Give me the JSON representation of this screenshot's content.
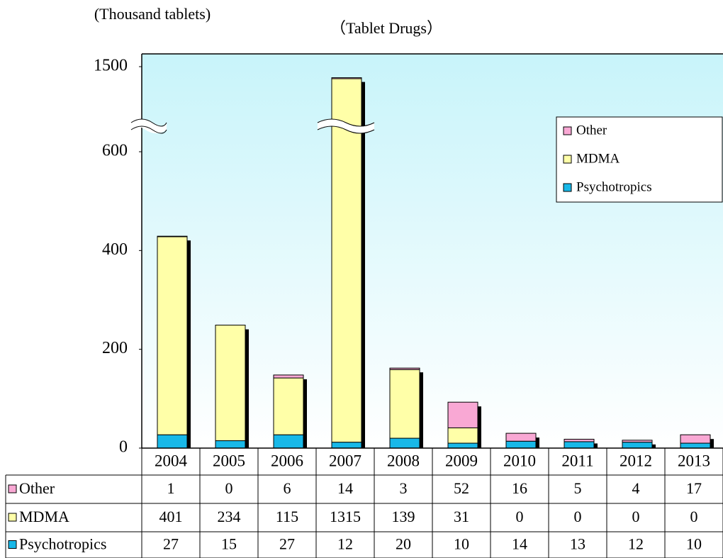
{
  "chart_data": {
    "type": "bar",
    "stacked": true,
    "axis_break": true,
    "title": "（Tablet Drugs）",
    "y_label": "(Thousand tablets)",
    "categories": [
      "2004",
      "2005",
      "2006",
      "2007",
      "2008",
      "2009",
      "2010",
      "2011",
      "2012",
      "2013"
    ],
    "series": [
      {
        "name": "Other",
        "color": "#f9a8d4",
        "values": [
          1,
          0,
          6,
          14,
          3,
          52,
          16,
          5,
          4,
          17
        ]
      },
      {
        "name": "MDMA",
        "color": "#ffffa8",
        "values": [
          401,
          234,
          115,
          1315,
          139,
          31,
          0,
          0,
          0,
          0
        ]
      },
      {
        "name": "Psychotropics",
        "color": "#18b8e8",
        "values": [
          27,
          15,
          27,
          12,
          20,
          10,
          14,
          13,
          12,
          10
        ]
      }
    ],
    "ylim": [
      0,
      1500
    ],
    "yticks": [
      0,
      200,
      400,
      600,
      1500
    ],
    "legend": "upper right"
  }
}
